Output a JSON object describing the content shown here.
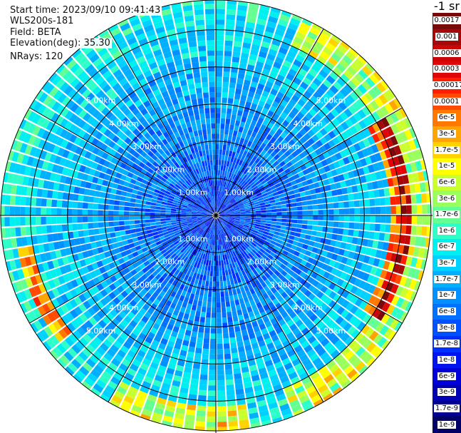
{
  "header": {
    "start_time": "Start time: 2023/09/10 09:41:43",
    "instrument": "WLS200s-181",
    "field": "Field: BETA",
    "elevation": "Elevation(deg): 35.30",
    "nrays": "NRays: 120"
  },
  "chart_data": {
    "type": "heatmap",
    "projection": "polar-ppi",
    "field": "BETA",
    "unit_label": "-1 sr",
    "n_rays": 120,
    "range_rings_km": [
      1.0,
      2.0,
      3.0,
      4.0,
      5.0
    ],
    "ring_labels": [
      "1.00km",
      "2.00km",
      "3.00km",
      "4.00km",
      "5.00km"
    ],
    "max_range_km": 5.8,
    "colorbar": [
      {
        "label": "0.0017",
        "color": "#7a0a0a"
      },
      {
        "label": "0.001",
        "color": "#a40808"
      },
      {
        "label": "0.0006",
        "color": "#c80606"
      },
      {
        "label": "0.0003",
        "color": "#e10606"
      },
      {
        "label": "0.00017",
        "color": "#ff1e00"
      },
      {
        "label": "0.0001",
        "color": "#ff4a00"
      },
      {
        "label": "6e-5",
        "color": "#ff7800"
      },
      {
        "label": "3e-5",
        "color": "#ffa400"
      },
      {
        "label": "1.7e-5",
        "color": "#ffd200"
      },
      {
        "label": "1e-5",
        "color": "#ffff00"
      },
      {
        "label": "6e-6",
        "color": "#c9ff2e"
      },
      {
        "label": "3e-6",
        "color": "#9aff5c"
      },
      {
        "label": "1.7e-6",
        "color": "#64ff92"
      },
      {
        "label": "1e-6",
        "color": "#2effc9"
      },
      {
        "label": "6e-7",
        "color": "#00f0f0"
      },
      {
        "label": "3e-7",
        "color": "#00d2ff"
      },
      {
        "label": "1.7e-7",
        "color": "#00b0ff"
      },
      {
        "label": "1e-7",
        "color": "#0090ff"
      },
      {
        "label": "6e-8",
        "color": "#0070ff"
      },
      {
        "label": "3e-8",
        "color": "#0050ff"
      },
      {
        "label": "1.7e-8",
        "color": "#0030ff"
      },
      {
        "label": "1e-8",
        "color": "#0014f0"
      },
      {
        "label": "6e-9",
        "color": "#0000d8"
      },
      {
        "label": "3e-9",
        "color": "#0000b4"
      },
      {
        "label": "1.7e-9",
        "color": "#000090"
      },
      {
        "label": "1e-9",
        "color": "#000066"
      }
    ],
    "grid": true,
    "spoke_step_deg": 30
  }
}
